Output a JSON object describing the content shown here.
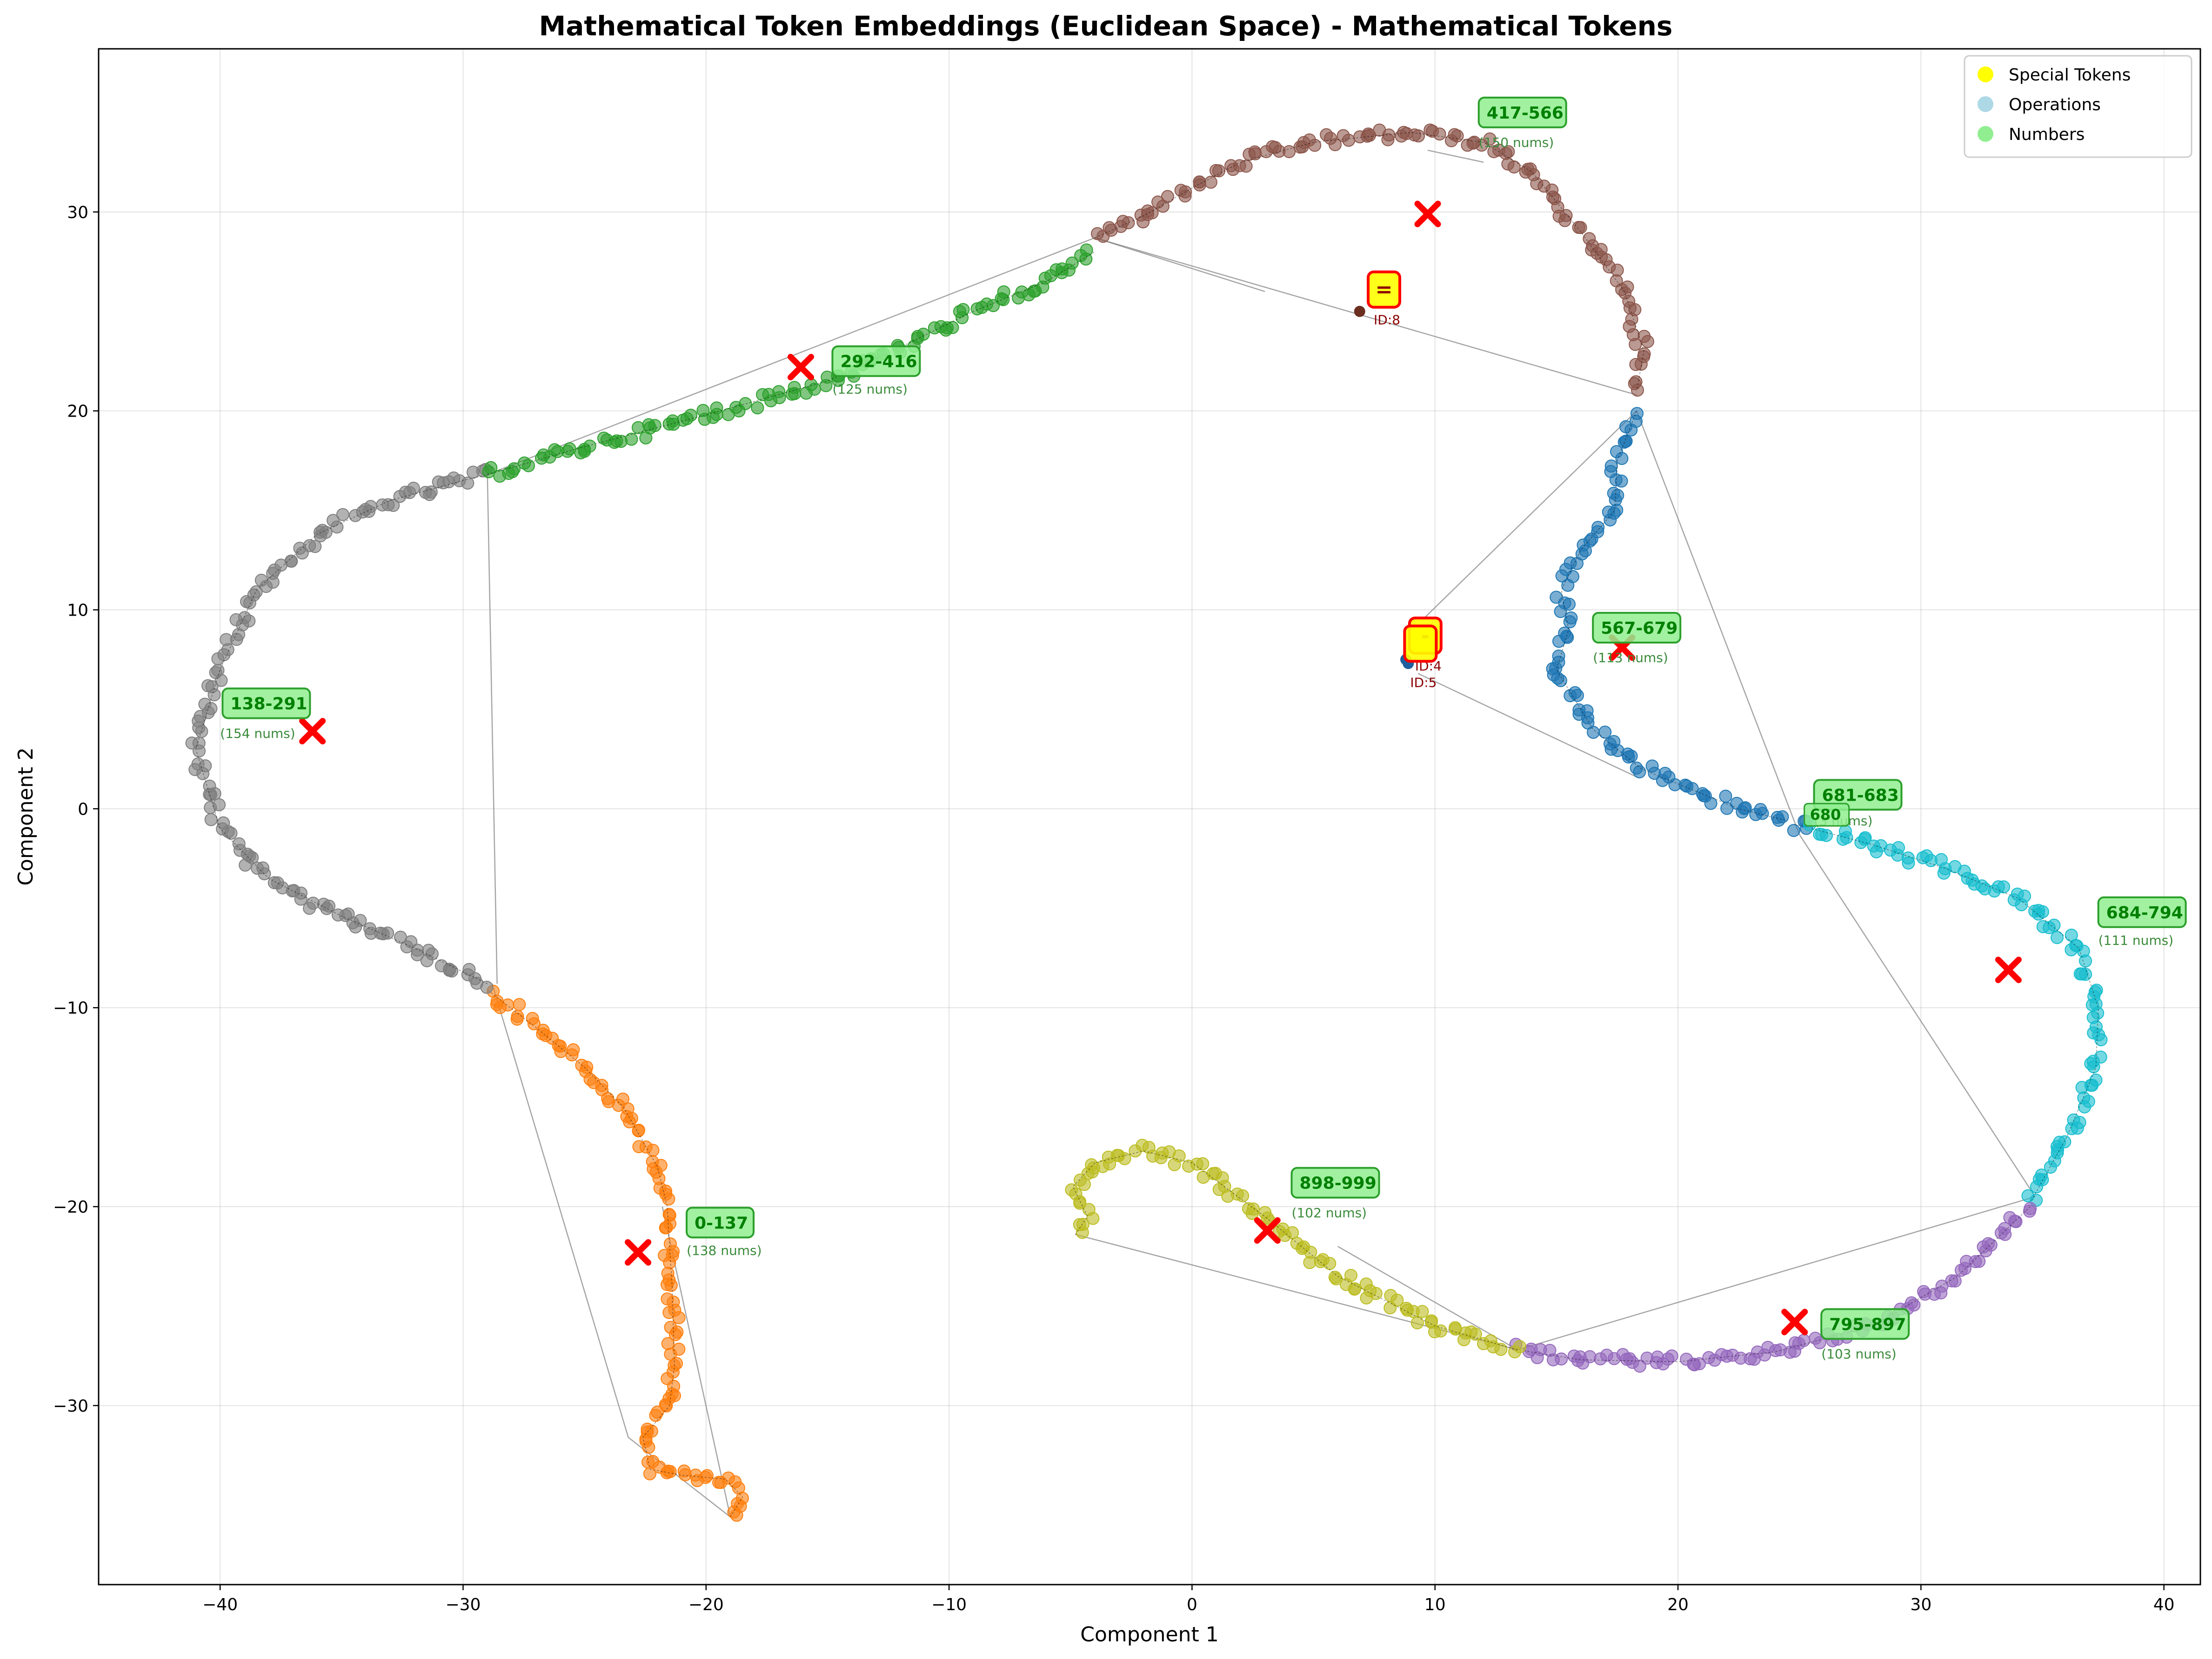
{
  "chart_data": {
    "type": "scatter",
    "title": "Mathematical Token Embeddings (Euclidean Space) - Mathematical Tokens",
    "xlabel": "Component 1",
    "ylabel": "Component 2",
    "xlim": [
      -45,
      41.5
    ],
    "ylim": [
      -39,
      38.2
    ],
    "xticks": [
      -40,
      -30,
      -20,
      -10,
      0,
      10,
      20,
      30,
      40
    ],
    "yticks": [
      -30,
      -20,
      -10,
      0,
      10,
      20,
      30
    ],
    "grid": true,
    "legend": {
      "position": "top-right",
      "entries": [
        {
          "label": "Special Tokens",
          "color": "#ffff00"
        },
        {
          "label": "Operations",
          "color": "#add8e6"
        },
        {
          "label": "Numbers",
          "color": "#90ee90"
        }
      ]
    },
    "clusters": [
      {
        "label": "0-137",
        "count_label": "(138 nums)",
        "color": "#ff7f0e",
        "path": [
          [
            -19,
            -35.6
          ],
          [
            -18.5,
            -34.6
          ],
          [
            -19.2,
            -33.7
          ],
          [
            -21,
            -33.5
          ],
          [
            -22.3,
            -33.2
          ],
          [
            -22.6,
            -31.6
          ],
          [
            -21.5,
            -30
          ],
          [
            -21.3,
            -28
          ],
          [
            -21.4,
            -24
          ],
          [
            -21.6,
            -20
          ],
          [
            -22,
            -18
          ],
          [
            -23.4,
            -15
          ],
          [
            -25,
            -13
          ],
          [
            -27,
            -11
          ],
          [
            -29,
            -9.1
          ]
        ],
        "centroid": [
          -22.8,
          -22.3
        ],
        "label_pos": [
          -20.8,
          -20.8
        ],
        "count_pos": [
          -20.8,
          -22.2
        ]
      },
      {
        "label": "138-291",
        "count_label": "(154 nums)",
        "color": "#7f7f7f",
        "path": [
          [
            -29,
            -8.8
          ],
          [
            -32,
            -7
          ],
          [
            -35,
            -5.4
          ],
          [
            -38,
            -3.5
          ],
          [
            -40,
            -1
          ],
          [
            -41,
            3
          ],
          [
            -40,
            7
          ],
          [
            -38.5,
            11
          ],
          [
            -36,
            13.8
          ],
          [
            -33,
            15.5
          ],
          [
            -30,
            16.5
          ],
          [
            -29,
            16.8
          ]
        ],
        "centroid": [
          -36.2,
          3.9
        ],
        "label_pos": [
          -39.9,
          5.3
        ],
        "count_pos": [
          -40,
          3.8
        ]
      },
      {
        "label": "292-416",
        "count_label": "(125 nums)",
        "color": "#2ca02c",
        "path": [
          [
            -29,
            16.8
          ],
          [
            -25,
            18.2
          ],
          [
            -20,
            19.8
          ],
          [
            -15,
            21.5
          ],
          [
            -12,
            23.2
          ],
          [
            -9,
            25
          ],
          [
            -6,
            26.5
          ],
          [
            -4,
            28
          ]
        ],
        "centroid": [
          -16.1,
          22.2
        ],
        "label_pos": [
          -14.8,
          22.5
        ],
        "count_pos": [
          -14.8,
          21.1
        ]
      },
      {
        "label": "417-566",
        "count_label": "(150 nums)",
        "color": "#8c564b",
        "path": [
          [
            -4,
            28.7
          ],
          [
            -2,
            29.8
          ],
          [
            0,
            31.2
          ],
          [
            2,
            32.5
          ],
          [
            5,
            33.5
          ],
          [
            9,
            34
          ],
          [
            12,
            33.5
          ],
          [
            14,
            32
          ],
          [
            16,
            29
          ],
          [
            17.8,
            26
          ],
          [
            18.6,
            23
          ],
          [
            18.3,
            21
          ]
        ],
        "centroid": [
          9.7,
          29.9
        ],
        "label_pos": [
          11.8,
          35
        ],
        "count_pos": [
          11.8,
          33.5
        ]
      },
      {
        "label": "567-679",
        "count_label": "(113 nums)",
        "color": "#1f77b4",
        "path": [
          [
            18.3,
            20
          ],
          [
            17.5,
            17.5
          ],
          [
            17.4,
            15
          ],
          [
            16,
            13
          ],
          [
            15.2,
            11
          ],
          [
            15.5,
            9
          ],
          [
            15,
            7
          ],
          [
            16.5,
            4
          ],
          [
            18.5,
            2
          ],
          [
            20.5,
            1
          ],
          [
            22.5,
            0
          ],
          [
            24.5,
            -0.6
          ]
        ],
        "centroid": [
          17.7,
          8.1
        ],
        "label_pos": [
          16.5,
          9.1
        ],
        "count_pos": [
          16.5,
          7.6
        ]
      },
      {
        "label": "681-683",
        "count_label": "(3 nums)",
        "color": "#1f77b4",
        "path": [
          [
            24.8,
            -0.8
          ],
          [
            25.5,
            -0.9
          ]
        ],
        "centroid": [
          25.3,
          -0.9
        ],
        "label_pos": [
          25.6,
          0.7
        ],
        "count_pos": [
          25.6,
          -0.6
        ]
      },
      {
        "label": "684-794",
        "count_label": "(111 nums)",
        "color": "#17becf",
        "path": [
          [
            25.5,
            -1
          ],
          [
            28,
            -1.8
          ],
          [
            31,
            -3
          ],
          [
            34,
            -4.5
          ],
          [
            36.5,
            -7
          ],
          [
            37.3,
            -10
          ],
          [
            37.2,
            -13
          ],
          [
            36,
            -16.5
          ],
          [
            34.5,
            -19.8
          ]
        ],
        "centroid": [
          33.6,
          -8.1
        ],
        "label_pos": [
          37.3,
          -5.2
        ],
        "count_pos": [
          37.3,
          -6.6
        ]
      },
      {
        "label": "795-897",
        "count_label": "(103 nums)",
        "color": "#9467bd",
        "path": [
          [
            34.5,
            -20
          ],
          [
            31.5,
            -23.5
          ],
          [
            28,
            -26
          ],
          [
            24,
            -27.3
          ],
          [
            20,
            -27.8
          ],
          [
            16,
            -27.7
          ],
          [
            13.4,
            -27.2
          ]
        ],
        "centroid": [
          24.8,
          -25.8
        ],
        "label_pos": [
          25.9,
          -25.9
        ],
        "count_pos": [
          25.9,
          -27.4
        ]
      },
      {
        "label": "898-999",
        "count_label": "(102 nums)",
        "color": "#bcbd22",
        "path": [
          [
            13.4,
            -27.2
          ],
          [
            10,
            -26
          ],
          [
            6,
            -23.5
          ],
          [
            3,
            -20.5
          ],
          [
            0,
            -17.8
          ],
          [
            -2,
            -17.2
          ],
          [
            -4,
            -17.8
          ],
          [
            -4.9,
            -19
          ],
          [
            -4.3,
            -20.5
          ],
          [
            -4.8,
            -21.4
          ]
        ],
        "centroid": [
          3.1,
          -21.2
        ],
        "label_pos": [
          4.1,
          -18.8
        ],
        "count_pos": [
          4.1,
          -20.3
        ]
      }
    ],
    "hull_edges": [
      [
        [
          -29,
          16.8
        ],
        [
          -4,
          28.7
        ]
      ],
      [
        [
          -4,
          28.7
        ],
        [
          18.3,
          20.8
        ]
      ],
      [
        [
          -29,
          16.8
        ],
        [
          -28.6,
          -8.8
        ]
      ],
      [
        [
          -28.8,
          -8.8
        ],
        [
          -23.2,
          -31.6
        ]
      ],
      [
        [
          -23.2,
          -31.6
        ],
        [
          -19,
          -35.6
        ]
      ],
      [
        [
          -19,
          -35.6
        ],
        [
          -21.8,
          -20
        ]
      ],
      [
        [
          18.3,
          20
        ],
        [
          9.4,
          9.4
        ]
      ],
      [
        [
          9.3,
          6.8
        ],
        [
          18.3,
          1.6
        ]
      ],
      [
        [
          18.3,
          20
        ],
        [
          25,
          -1.3
        ]
      ],
      [
        [
          25,
          -1.3
        ],
        [
          34.7,
          -19.5
        ]
      ],
      [
        [
          34.7,
          -19.5
        ],
        [
          13.4,
          -27.2
        ]
      ],
      [
        [
          13.4,
          -27.2
        ],
        [
          -4.8,
          -21.4
        ]
      ],
      [
        [
          13.4,
          -27.2
        ],
        [
          6,
          -22
        ]
      ],
      [
        [
          9.7,
          33.1
        ],
        [
          12,
          32.5
        ]
      ],
      [
        [
          -4,
          28.7
        ],
        [
          3,
          26
        ]
      ]
    ],
    "special_tokens": [
      {
        "symbol": "=",
        "id_label": "ID:8",
        "pos": [
          7.9,
          26.1
        ],
        "dot": [
          6.9,
          25
        ]
      },
      {
        "symbol": "-",
        "id_label": "ID:4",
        "pos": [
          9.6,
          8.7
        ],
        "dot": [
          8.8,
          7.5
        ]
      },
      {
        "symbol": "",
        "id_label": "ID:5",
        "pos": [
          9.4,
          8.3
        ],
        "dot": [
          8.9,
          7.3
        ]
      }
    ],
    "extra_labels": [
      {
        "text": "680",
        "pos": [
          25.2,
          -0.3
        ]
      }
    ],
    "colors": {
      "label_bg": "#90ee90",
      "label_border": "#2ca02c",
      "label_text": "#008000",
      "count_text": "#3a8a3a",
      "centroid": "#ff0000",
      "special_bg": "#ffff00",
      "special_border": "#ff0000",
      "id_text": "#8b0000"
    }
  }
}
